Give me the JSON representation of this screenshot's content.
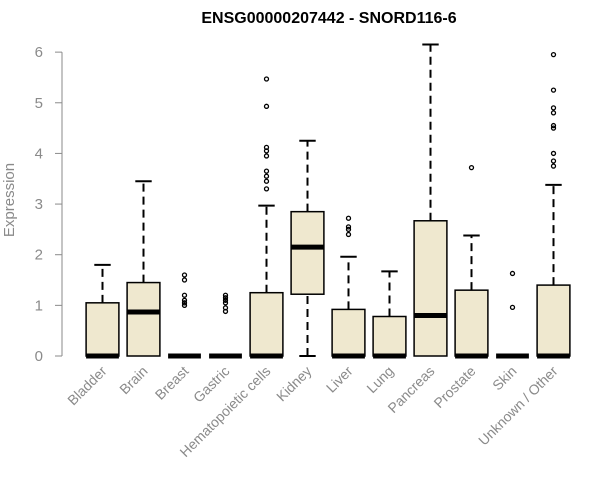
{
  "chart_data": {
    "type": "boxplot",
    "title": "ENSG00000207442 - SNORD116-6",
    "xlabel": "",
    "ylabel": "Expression",
    "ylim": [
      0,
      6.2
    ],
    "yticks": [
      0,
      1,
      2,
      3,
      4,
      5,
      6
    ],
    "grid": false,
    "box_color": "#efe8cf",
    "categories": [
      "Bladder",
      "Brain",
      "Breast",
      "Gastric",
      "Hematopoietic cells",
      "Kidney",
      "Liver",
      "Lung",
      "Pancreas",
      "Prostate",
      "Skin",
      "Unknown / Other"
    ],
    "boxes": [
      {
        "category": "Bladder",
        "min": 0,
        "q1": 0,
        "median": 0,
        "q3": 1.05,
        "max": 1.8,
        "outliers": []
      },
      {
        "category": "Brain",
        "min": 0,
        "q1": 0,
        "median": 0.87,
        "q3": 1.45,
        "max": 3.45,
        "outliers": []
      },
      {
        "category": "Breast",
        "min": 0,
        "q1": 0,
        "median": 0,
        "q3": 0,
        "max": 0,
        "outliers": [
          1.0,
          1.05,
          1.1,
          1.2,
          1.5,
          1.6
        ]
      },
      {
        "category": "Gastric",
        "min": 0,
        "q1": 0,
        "median": 0,
        "q3": 0,
        "max": 0,
        "outliers": [
          0.88,
          0.95,
          1.05,
          1.1,
          1.15,
          1.2
        ]
      },
      {
        "category": "Hematopoietic cells",
        "min": 0,
        "q1": 0,
        "median": 0,
        "q3": 1.25,
        "max": 2.97,
        "outliers": [
          3.3,
          3.45,
          3.55,
          3.65,
          3.95,
          4.05,
          4.12,
          4.93,
          5.47
        ]
      },
      {
        "category": "Kidney",
        "min": 0,
        "q1": 1.22,
        "median": 2.15,
        "q3": 2.85,
        "max": 4.25,
        "outliers": []
      },
      {
        "category": "Liver",
        "min": 0,
        "q1": 0,
        "median": 0,
        "q3": 0.92,
        "max": 1.96,
        "outliers": [
          2.4,
          2.5,
          2.55,
          2.72
        ]
      },
      {
        "category": "Lung",
        "min": 0,
        "q1": 0,
        "median": 0,
        "q3": 0.78,
        "max": 1.67,
        "outliers": []
      },
      {
        "category": "Pancreas",
        "min": 0,
        "q1": 0,
        "median": 0.8,
        "q3": 2.67,
        "max": 6.15,
        "outliers": []
      },
      {
        "category": "Prostate",
        "min": 0,
        "q1": 0,
        "median": 0,
        "q3": 1.3,
        "max": 2.38,
        "outliers": [
          3.72
        ]
      },
      {
        "category": "Skin",
        "min": 0,
        "q1": 0,
        "median": 0,
        "q3": 0,
        "max": 0,
        "outliers": [
          0.96,
          1.63
        ]
      },
      {
        "category": "Unknown / Other",
        "min": 0,
        "q1": 0,
        "median": 0,
        "q3": 1.4,
        "max": 3.38,
        "outliers": [
          3.75,
          3.85,
          4.0,
          4.5,
          4.55,
          4.8,
          4.9,
          5.25,
          5.95
        ]
      }
    ]
  }
}
